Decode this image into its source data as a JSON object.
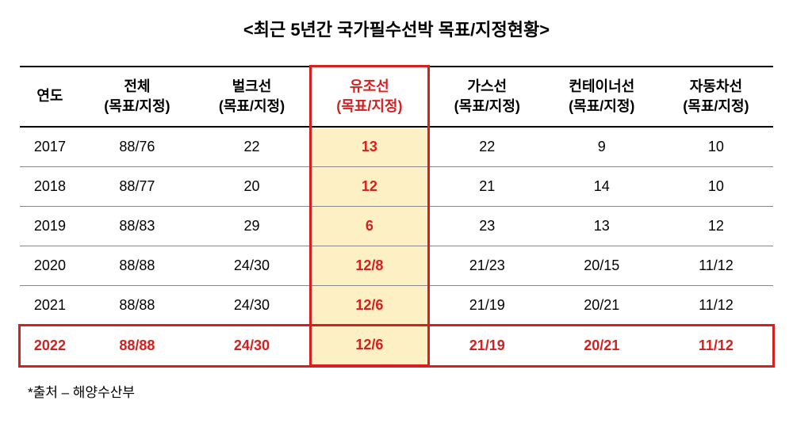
{
  "title": "<최근 5년간 국가필수선박 목표/지정현황>",
  "table": {
    "headers": [
      {
        "line1": "연도",
        "line2": ""
      },
      {
        "line1": "전체",
        "line2": "(목표/지정)"
      },
      {
        "line1": "벌크선",
        "line2": "(목표/지정)"
      },
      {
        "line1": "유조선",
        "line2": "(목표/지정)"
      },
      {
        "line1": "가스선",
        "line2": "(목표/지정)"
      },
      {
        "line1": "컨테이너선",
        "line2": "(목표/지정)"
      },
      {
        "line1": "자동차선",
        "line2": "(목표/지정)"
      }
    ],
    "highlight_col_index": 3,
    "highlight_row_index": 5,
    "rows": [
      [
        "2017",
        "88/76",
        "22",
        "13",
        "22",
        "9",
        "10"
      ],
      [
        "2018",
        "88/77",
        "20",
        "12",
        "21",
        "14",
        "10"
      ],
      [
        "2019",
        "88/83",
        "29",
        "6",
        "23",
        "13",
        "12"
      ],
      [
        "2020",
        "88/88",
        "24/30",
        "12/8",
        "21/23",
        "20/15",
        "11/12"
      ],
      [
        "2021",
        "88/88",
        "24/30",
        "12/6",
        "21/19",
        "20/21",
        "11/12"
      ],
      [
        "2022",
        "88/88",
        "24/30",
        "12/6",
        "21/19",
        "20/21",
        "11/12"
      ]
    ]
  },
  "source": "*출처 – 해양수산부",
  "colors": {
    "highlight_red": "#d62020",
    "highlight_bg": "#fdf0c5",
    "border_black": "#000000",
    "border_gray": "#888888",
    "background": "#ffffff"
  },
  "font_sizes": {
    "title": 22,
    "table": 18,
    "source": 17
  }
}
